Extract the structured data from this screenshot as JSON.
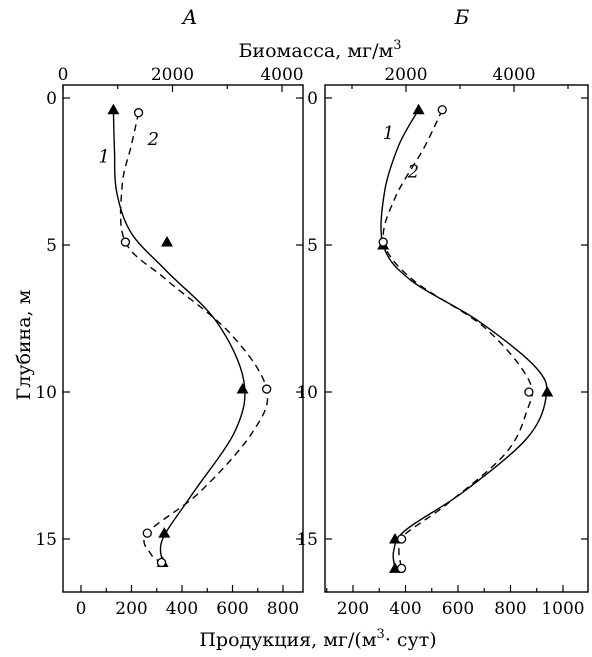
{
  "figure": {
    "top_axis_title": "Биомасса, мг/м",
    "top_axis_title_sup": "3",
    "bottom_axis_title_prefix": "Продукция, мг/(м",
    "bottom_axis_title_sup": "3",
    "bottom_axis_title_suffix": "· сут)",
    "left_axis_title": "Глубина, м"
  },
  "chart_data": [
    {
      "type": "line",
      "panel": "А",
      "y_axis": {
        "label": "Глубина, м",
        "range": [
          0,
          16.7
        ],
        "inverted": true,
        "ticks": [
          0,
          5,
          10,
          15
        ]
      },
      "x_top": {
        "label": "Биомасса, мг/м3",
        "range": [
          0,
          4600
        ],
        "ticks": [
          0,
          2000,
          4000
        ]
      },
      "x_bottom": {
        "label": "Продукция, мг/(м3 · сут)",
        "range": [
          -20,
          880
        ],
        "ticks": [
          0,
          200,
          400,
          600,
          800
        ]
      },
      "series": [
        {
          "name": "1",
          "style": "solid",
          "marker": "triangle",
          "axis": "top",
          "points": [
            [
              920,
              0.4
            ],
            [
              1900,
              4.9
            ],
            [
              3280,
              9.9
            ],
            [
              1850,
              14.8
            ],
            [
              1820,
              15.8
            ]
          ],
          "curve": [
            [
              920,
              0.4
            ],
            [
              940,
              1.8
            ],
            [
              980,
              3.2
            ],
            [
              1250,
              4.6
            ],
            [
              1900,
              5.9
            ],
            [
              2800,
              7.6
            ],
            [
              3300,
              9.6
            ],
            [
              3150,
              11.3
            ],
            [
              2350,
              13.5
            ],
            [
              1820,
              15.0
            ],
            [
              1820,
              15.8
            ]
          ]
        },
        {
          "name": "2",
          "style": "dashed",
          "marker": "circle",
          "axis": "top",
          "points": [
            [
              1380,
              0.5
            ],
            [
              1140,
              4.9
            ],
            [
              3720,
              9.9
            ],
            [
              1540,
              14.8
            ],
            [
              1800,
              15.8
            ]
          ],
          "curve": [
            [
              1380,
              0.5
            ],
            [
              1250,
              1.6
            ],
            [
              1080,
              3.0
            ],
            [
              1140,
              4.9
            ],
            [
              1900,
              6.2
            ],
            [
              3050,
              8.0
            ],
            [
              3720,
              9.9
            ],
            [
              3450,
              11.4
            ],
            [
              2500,
              13.4
            ],
            [
              1540,
              14.8
            ],
            [
              1600,
              15.5
            ],
            [
              1800,
              15.8
            ]
          ]
        }
      ],
      "curve_labels": [
        {
          "text": "1",
          "x": 750,
          "y": 2.2
        },
        {
          "text": "2",
          "x": 1650,
          "y": 1.6
        }
      ]
    },
    {
      "type": "line",
      "panel": "Б",
      "y_axis": {
        "label": "Глубина, м",
        "range": [
          0,
          16.7
        ],
        "inverted": true,
        "ticks": [
          0,
          5,
          10,
          15
        ]
      },
      "x_top": {
        "label": "Биомасса, мг/м3",
        "range": [
          0,
          6000
        ],
        "ticks": [
          2000,
          4000
        ]
      },
      "x_bottom": {
        "label": "Продукция, мг/(м3 · сут)",
        "range": [
          160,
          1090
        ],
        "ticks": [
          200,
          400,
          600,
          800,
          1000
        ]
      },
      "series": [
        {
          "name": "1",
          "style": "solid",
          "marker": "triangle",
          "axis": "bottom",
          "points": [
            [
              450,
              0.4
            ],
            [
              315,
              5.0
            ],
            [
              940,
              10.0
            ],
            [
              360,
              15.0
            ],
            [
              360,
              16.0
            ]
          ],
          "curve": [
            [
              450,
              0.4
            ],
            [
              375,
              1.6
            ],
            [
              320,
              3.2
            ],
            [
              315,
              5.0
            ],
            [
              420,
              6.2
            ],
            [
              680,
              7.6
            ],
            [
              900,
              9.2
            ],
            [
              935,
              10.2
            ],
            [
              860,
              11.6
            ],
            [
              620,
              13.4
            ],
            [
              400,
              14.7
            ],
            [
              355,
              15.4
            ],
            [
              360,
              16.0
            ]
          ]
        },
        {
          "name": "2",
          "style": "dashed",
          "marker": "circle",
          "axis": "bottom",
          "points": [
            [
              540,
              0.4
            ],
            [
              315,
              4.9
            ],
            [
              870,
              10.0
            ],
            [
              385,
              15.0
            ],
            [
              385,
              16.0
            ]
          ],
          "curve": [
            [
              540,
              0.4
            ],
            [
              470,
              1.7
            ],
            [
              360,
              3.4
            ],
            [
              318,
              4.9
            ],
            [
              430,
              6.2
            ],
            [
              700,
              7.8
            ],
            [
              870,
              9.6
            ],
            [
              860,
              10.7
            ],
            [
              780,
              12.1
            ],
            [
              560,
              13.8
            ],
            [
              390,
              14.9
            ],
            [
              375,
              15.4
            ],
            [
              385,
              16.0
            ]
          ]
        }
      ],
      "curve_labels": [
        {
          "text": "1",
          "x": 335,
          "y": 1.4
        },
        {
          "text": "2",
          "x": 430,
          "y": 2.7
        }
      ]
    }
  ]
}
